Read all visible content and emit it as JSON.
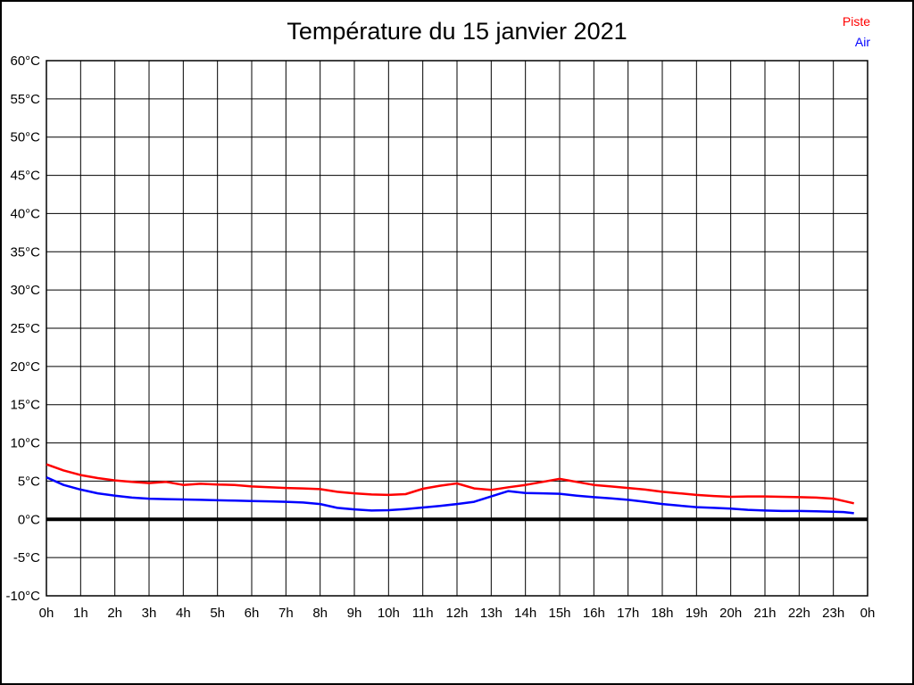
{
  "title": "Température du 15 janvier 2021",
  "legend": {
    "items": [
      {
        "label": "Piste",
        "color": "#ff0000"
      },
      {
        "label": "Air",
        "color": "#0000ff"
      }
    ]
  },
  "chart_data": {
    "type": "line",
    "title": "Température du 15 janvier 2021",
    "xlim": [
      0,
      24
    ],
    "ylim": [
      -10,
      60
    ],
    "ytick_step": 5,
    "grid": true,
    "zero_line": true,
    "legend_position": "top-right",
    "xtick_labels": [
      "0h",
      "1h",
      "2h",
      "3h",
      "4h",
      "5h",
      "6h",
      "7h",
      "8h",
      "9h",
      "10h",
      "11h",
      "12h",
      "13h",
      "14h",
      "15h",
      "16h",
      "17h",
      "18h",
      "19h",
      "20h",
      "21h",
      "22h",
      "23h",
      "0h"
    ],
    "ytick_labels": [
      "60°C",
      "55°C",
      "50°C",
      "45°C",
      "40°C",
      "35°C",
      "30°C",
      "25°C",
      "20°C",
      "15°C",
      "10°C",
      "5°C",
      "0°C",
      "-5°C",
      "-10°C"
    ],
    "x": [
      0,
      0.5,
      1,
      1.5,
      2,
      2.5,
      3,
      3.5,
      4,
      4.5,
      5,
      5.5,
      6,
      6.5,
      7,
      7.5,
      8,
      8.5,
      9,
      9.5,
      10,
      10.5,
      11,
      11.5,
      12,
      12.5,
      13,
      13.5,
      14,
      14.5,
      15,
      15.5,
      16,
      16.5,
      17,
      17.5,
      18,
      18.5,
      19,
      19.5,
      20,
      20.5,
      21,
      21.5,
      22,
      22.5,
      23,
      23.3,
      23.6
    ],
    "series": [
      {
        "name": "Piste",
        "color": "#ff0000",
        "values": [
          7.2,
          6.4,
          5.8,
          5.4,
          5.1,
          4.9,
          4.75,
          4.9,
          4.5,
          4.65,
          4.55,
          4.5,
          4.3,
          4.2,
          4.1,
          4.05,
          3.95,
          3.6,
          3.4,
          3.25,
          3.2,
          3.3,
          4.0,
          4.4,
          4.7,
          4.05,
          3.85,
          4.2,
          4.5,
          4.9,
          5.3,
          4.9,
          4.5,
          4.3,
          4.1,
          3.9,
          3.6,
          3.4,
          3.2,
          3.05,
          2.95,
          3.0,
          3.0,
          2.95,
          2.9,
          2.85,
          2.7,
          2.4,
          2.1
        ]
      },
      {
        "name": "Air",
        "color": "#0000ff",
        "values": [
          5.5,
          4.5,
          3.9,
          3.4,
          3.1,
          2.85,
          2.7,
          2.65,
          2.6,
          2.55,
          2.5,
          2.45,
          2.4,
          2.35,
          2.3,
          2.2,
          2.0,
          1.5,
          1.3,
          1.15,
          1.2,
          1.35,
          1.55,
          1.75,
          2.0,
          2.3,
          3.0,
          3.7,
          3.45,
          3.4,
          3.35,
          3.1,
          2.9,
          2.75,
          2.55,
          2.3,
          2.0,
          1.8,
          1.6,
          1.5,
          1.4,
          1.25,
          1.15,
          1.1,
          1.1,
          1.05,
          1.0,
          0.95,
          0.8
        ]
      }
    ]
  }
}
